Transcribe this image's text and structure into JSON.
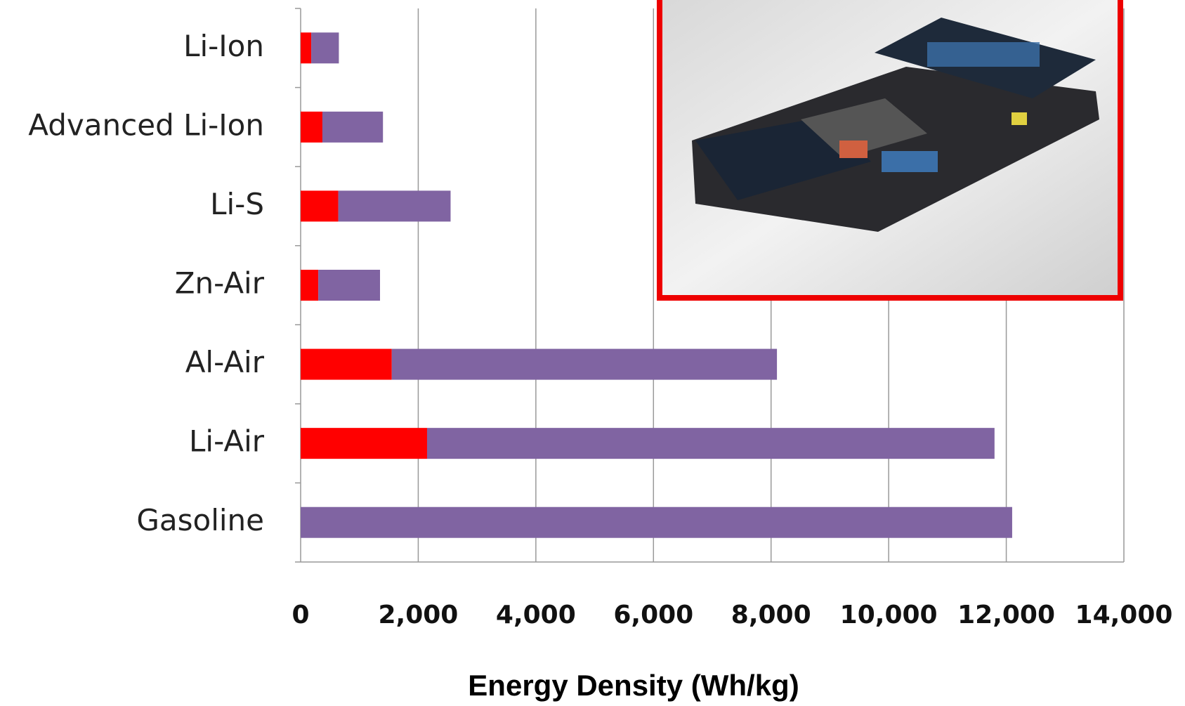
{
  "chart_data": {
    "type": "stacked-bar-horizontal",
    "categories": [
      "Li-Ion",
      "Advanced Li-Ion",
      "Li-S",
      "Zn-Air",
      "Al-Air",
      "Li-Air",
      "Gasoline"
    ],
    "series": [
      {
        "color": "#ff0000",
        "values": [
          180,
          370,
          640,
          300,
          1550,
          2150,
          0
        ]
      },
      {
        "color": "#8064a2",
        "values": [
          470,
          1030,
          1910,
          1050,
          6550,
          9650,
          12100
        ]
      }
    ],
    "x_label": "Energy Density (Wh/kg)",
    "xlim": [
      0,
      14000
    ],
    "xticks": [
      0,
      {
        "value": 2000,
        "label": "2,000"
      },
      {
        "value": 4000,
        "label": "4,000"
      },
      {
        "value": 6000,
        "label": "6,000"
      },
      {
        "value": 8000,
        "label": "8,000"
      },
      {
        "value": 10000,
        "label": "10,000"
      },
      {
        "value": 12000,
        "label": "12,000"
      },
      {
        "value": 14000,
        "label": "14,000"
      }
    ],
    "grid": true
  }
}
